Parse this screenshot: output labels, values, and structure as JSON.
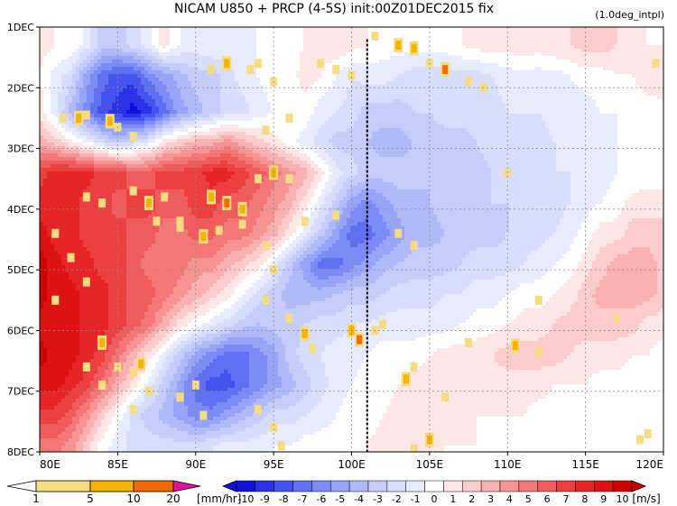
{
  "chart_data": {
    "type": "heatmap",
    "title": "NICAM   U850  +  PRCP  (4-5S)  init:00Z01DEC2015  fix",
    "note": "(1.0deg_intpl)",
    "x_ticks": [
      "80E",
      "85E",
      "90E",
      "95E",
      "100E",
      "105E",
      "110E",
      "115E",
      "120E"
    ],
    "x_values": [
      80,
      85,
      90,
      95,
      100,
      105,
      110,
      115,
      120
    ],
    "y_ticks": [
      "1DEC",
      "2DEC",
      "3DEC",
      "4DEC",
      "5DEC",
      "6DEC",
      "7DEC",
      "8DEC"
    ],
    "y_values": [
      1,
      2,
      3,
      4,
      5,
      6,
      7,
      8
    ],
    "xlim": [
      80,
      120
    ],
    "ylim": [
      1,
      8
    ],
    "y_inverted": true,
    "grid": true,
    "marker_line_lon": 101,
    "u850_field": [
      {
        "day": 1.3,
        "values": [
          1,
          0.5,
          0.5,
          -1,
          -3,
          -3,
          -2,
          -1,
          1,
          -0.5,
          -1,
          -0.5,
          -1,
          -1,
          -0.5,
          0,
          0,
          0.5,
          1,
          1.5,
          1,
          0.5,
          0,
          0,
          0,
          0,
          0,
          0.5,
          1,
          1,
          1,
          1.5,
          1,
          1.5,
          1.5,
          2,
          2,
          1.5,
          1,
          0.5,
          0.5
        ]
      },
      {
        "day": 1.8,
        "values": [
          0.5,
          -1,
          -2,
          -5,
          -7,
          -8,
          -8,
          -6,
          -5,
          -4,
          -3,
          -3,
          -2,
          -1,
          -0.5,
          0,
          0,
          1,
          0.5,
          -0.5,
          -1.5,
          -1,
          -1,
          -1.5,
          -2,
          -2,
          -2,
          -2,
          -2,
          -1.5,
          -1,
          -1,
          -1,
          -1,
          -0.5,
          0,
          0,
          0.5,
          0.5,
          1,
          1.5
        ]
      },
      {
        "day": 2.4,
        "values": [
          1,
          -1,
          -4,
          -6,
          -8,
          -9,
          -10,
          -9,
          -7,
          -5,
          -4,
          -3,
          -2,
          -2,
          -1,
          -0.5,
          0,
          0,
          -1,
          -1.5,
          -2,
          -3,
          -3,
          -3,
          -2.5,
          -2.5,
          -2,
          -2,
          -2,
          -2,
          -1.5,
          -1.5,
          -1.5,
          -1,
          -1,
          -1,
          -0.5,
          -0.5,
          0,
          0,
          0
        ]
      },
      {
        "day": 2.9,
        "values": [
          3,
          2,
          1,
          -0.5,
          -2,
          -3,
          -2,
          -1,
          1,
          2,
          3,
          3,
          4,
          3,
          2,
          1,
          0,
          -1,
          -2,
          -3,
          -3,
          -3.5,
          -4,
          -4,
          -3.5,
          -3,
          -3,
          -3,
          -2.5,
          -2,
          -2,
          -2,
          -2,
          -1.5,
          -1.5,
          -1,
          -1,
          -0.5,
          -0.5,
          0,
          0
        ]
      },
      {
        "day": 3.4,
        "values": [
          7,
          8,
          8,
          8,
          7,
          7,
          6,
          6,
          7,
          7,
          7,
          8,
          8,
          7,
          6,
          5,
          4,
          3,
          1,
          -1,
          -2,
          -3,
          -3,
          -3,
          -3,
          -3.5,
          -3,
          -3,
          -3,
          -2.5,
          -2,
          -2,
          -2,
          -1.5,
          -1.5,
          -1,
          -1,
          -0.5,
          -0.5,
          0,
          0
        ]
      },
      {
        "day": 3.9,
        "values": [
          8,
          8,
          8,
          7,
          7,
          6,
          7,
          7,
          6,
          6,
          7,
          7,
          6,
          6,
          5,
          4,
          3,
          1,
          -1,
          -3,
          -5,
          -6,
          -5,
          -4,
          -4,
          -3.5,
          -3,
          -3,
          -3,
          -2.5,
          -2.5,
          -2,
          -2,
          -2,
          -1.5,
          -1,
          -0.5,
          0,
          1,
          1,
          1
        ]
      },
      {
        "day": 4.4,
        "values": [
          9,
          8,
          8,
          7,
          7,
          7,
          6,
          6,
          5,
          5,
          6,
          6,
          5,
          5,
          4,
          3,
          1,
          -1,
          -3,
          -5,
          -7,
          -7,
          -6,
          -5,
          -4,
          -4,
          -3.5,
          -3,
          -3,
          -3,
          -2.5,
          -2,
          -2,
          -1.5,
          -1,
          0,
          1,
          1,
          2,
          2,
          2
        ]
      },
      {
        "day": 4.9,
        "values": [
          10,
          9,
          8,
          8,
          7,
          7,
          6,
          5,
          5,
          5,
          4,
          4,
          3,
          2,
          1,
          -1,
          -3,
          -5,
          -7,
          -7,
          -6,
          -5,
          -4,
          -3.5,
          -3,
          -3,
          -3,
          -2.5,
          -2,
          -2,
          -2,
          -1.5,
          -1,
          -0.5,
          0,
          1,
          2,
          3,
          3,
          3,
          2
        ]
      },
      {
        "day": 5.4,
        "values": [
          10,
          9,
          9,
          8,
          8,
          7,
          6,
          6,
          5,
          4,
          3,
          2,
          1,
          -0.5,
          -2,
          -3,
          -4,
          -4,
          -4,
          -3.5,
          -3,
          -3,
          -2.5,
          -2,
          -2,
          -2,
          -1.5,
          -1.5,
          -1,
          -1,
          -0.5,
          0,
          0,
          0.5,
          1,
          2,
          3,
          3,
          3,
          3,
          2
        ]
      },
      {
        "day": 5.9,
        "values": [
          9,
          9,
          9,
          8,
          8,
          7,
          6,
          5,
          3,
          1,
          0,
          -1,
          -2,
          -3,
          -3.5,
          -3,
          -3,
          -2.5,
          -2,
          -2,
          -1.5,
          -1.5,
          -1,
          -1,
          -1,
          -1,
          -1,
          -0.5,
          0,
          0,
          0.5,
          1,
          1,
          1.5,
          2,
          2,
          2,
          2,
          2,
          1,
          1
        ]
      },
      {
        "day": 6.4,
        "values": [
          10,
          9,
          9,
          8,
          7,
          5,
          3,
          1,
          -1,
          -3,
          -5,
          -6,
          -7,
          -7,
          -6,
          -5,
          -3,
          -2,
          -1.5,
          -1,
          -1,
          -0.5,
          0,
          0,
          0,
          0.5,
          1,
          1,
          1,
          1.5,
          2,
          2,
          2,
          2,
          1.5,
          1,
          1,
          1,
          0.5,
          0.5,
          0
        ]
      },
      {
        "day": 6.9,
        "values": [
          9,
          9,
          8,
          7,
          5,
          3,
          1,
          -1,
          -3,
          -5,
          -7,
          -8,
          -8,
          -7,
          -6,
          -5,
          -4,
          -3,
          -2,
          -1,
          -0.5,
          0,
          0,
          0.5,
          1,
          1,
          1,
          1.5,
          1.5,
          1,
          1,
          1,
          1,
          0.5,
          0.5,
          0.5,
          0,
          0,
          0,
          0,
          0
        ]
      },
      {
        "day": 7.4,
        "values": [
          7,
          7,
          6,
          4,
          2,
          0,
          -2,
          -3,
          -4,
          -5,
          -6,
          -6,
          -5,
          -4,
          -3,
          -2,
          -2,
          -1.5,
          -1,
          -0.5,
          0,
          0,
          0.5,
          1,
          1,
          1,
          1,
          1,
          0.5,
          0.5,
          0.5,
          0.5,
          0,
          0,
          0,
          0,
          0,
          0,
          0,
          0,
          0
        ]
      },
      {
        "day": 7.9,
        "values": [
          5,
          5,
          4,
          2,
          0,
          -1,
          -2,
          -2,
          -2,
          -2,
          -2,
          -1.5,
          -1,
          -1,
          -1,
          -0.5,
          -0.5,
          0,
          0,
          0,
          0,
          0.5,
          1,
          1,
          1,
          1,
          0.5,
          0.5,
          0.5,
          0,
          0,
          0,
          0,
          0,
          0,
          0,
          0,
          0,
          0,
          0,
          0
        ]
      }
    ],
    "u850_lons": [
      80,
      81,
      82,
      83,
      84,
      85,
      86,
      87,
      88,
      89,
      90,
      91,
      92,
      93,
      94,
      95,
      96,
      97,
      98,
      99,
      100,
      101,
      102,
      103,
      104,
      105,
      106,
      107,
      108,
      109,
      110,
      111,
      112,
      113,
      114,
      115,
      116,
      117,
      118,
      119,
      120
    ],
    "precip_cells": [
      {
        "lon": 81.5,
        "day": 2.5,
        "v": 3
      },
      {
        "lon": 82.5,
        "day": 2.5,
        "v": 5
      },
      {
        "lon": 83,
        "day": 2.45,
        "v": 2
      },
      {
        "lon": 84.5,
        "day": 2.55,
        "v": 6
      },
      {
        "lon": 85,
        "day": 2.65,
        "v": 3
      },
      {
        "lon": 86,
        "day": 2.8,
        "v": 2
      },
      {
        "lon": 91,
        "day": 1.7,
        "v": 3
      },
      {
        "lon": 92,
        "day": 1.6,
        "v": 6
      },
      {
        "lon": 93.5,
        "day": 1.7,
        "v": 2
      },
      {
        "lon": 94,
        "day": 1.6,
        "v": 4
      },
      {
        "lon": 95,
        "day": 1.9,
        "v": 2
      },
      {
        "lon": 98,
        "day": 1.6,
        "v": 3
      },
      {
        "lon": 99,
        "day": 1.7,
        "v": 2
      },
      {
        "lon": 100,
        "day": 1.8,
        "v": 4
      },
      {
        "lon": 101.5,
        "day": 1.15,
        "v": 3
      },
      {
        "lon": 103,
        "day": 1.3,
        "v": 8
      },
      {
        "lon": 104,
        "day": 1.35,
        "v": 6
      },
      {
        "lon": 105,
        "day": 1.6,
        "v": 4
      },
      {
        "lon": 106,
        "day": 1.7,
        "v": 12
      },
      {
        "lon": 107.5,
        "day": 1.9,
        "v": 3
      },
      {
        "lon": 108.5,
        "day": 2.0,
        "v": 2
      },
      {
        "lon": 94.5,
        "day": 2.7,
        "v": 3
      },
      {
        "lon": 96,
        "day": 2.5,
        "v": 2
      },
      {
        "lon": 83,
        "day": 3.8,
        "v": 2
      },
      {
        "lon": 84,
        "day": 3.9,
        "v": 3
      },
      {
        "lon": 86,
        "day": 3.7,
        "v": 2
      },
      {
        "lon": 87,
        "day": 3.9,
        "v": 5
      },
      {
        "lon": 88,
        "day": 3.8,
        "v": 3
      },
      {
        "lon": 89,
        "day": 4.2,
        "v": 2
      },
      {
        "lon": 91,
        "day": 3.8,
        "v": 8
      },
      {
        "lon": 92,
        "day": 3.9,
        "v": 12
      },
      {
        "lon": 93,
        "day": 4.0,
        "v": 6
      },
      {
        "lon": 94,
        "day": 3.5,
        "v": 4
      },
      {
        "lon": 95,
        "day": 3.4,
        "v": 5
      },
      {
        "lon": 96,
        "day": 3.5,
        "v": 3
      },
      {
        "lon": 87.5,
        "day": 4.2,
        "v": 3
      },
      {
        "lon": 89,
        "day": 4.3,
        "v": 2
      },
      {
        "lon": 90.5,
        "day": 4.45,
        "v": 8
      },
      {
        "lon": 91.5,
        "day": 4.35,
        "v": 4
      },
      {
        "lon": 93,
        "day": 4.25,
        "v": 3
      },
      {
        "lon": 94.5,
        "day": 4.6,
        "v": 2
      },
      {
        "lon": 95,
        "day": 5.0,
        "v": 2
      },
      {
        "lon": 97,
        "day": 4.2,
        "v": 2
      },
      {
        "lon": 99,
        "day": 4.1,
        "v": 2
      },
      {
        "lon": 103,
        "day": 4.4,
        "v": 2
      },
      {
        "lon": 104,
        "day": 4.6,
        "v": 2
      },
      {
        "lon": 81,
        "day": 4.4,
        "v": 2
      },
      {
        "lon": 82,
        "day": 4.8,
        "v": 3
      },
      {
        "lon": 83,
        "day": 5.2,
        "v": 2
      },
      {
        "lon": 81,
        "day": 5.5,
        "v": 2
      },
      {
        "lon": 94.5,
        "day": 5.5,
        "v": 2
      },
      {
        "lon": 96,
        "day": 5.8,
        "v": 3
      },
      {
        "lon": 97,
        "day": 6.05,
        "v": 7
      },
      {
        "lon": 97.5,
        "day": 6.3,
        "v": 4
      },
      {
        "lon": 100,
        "day": 6.0,
        "v": 5
      },
      {
        "lon": 100.5,
        "day": 6.15,
        "v": 12
      },
      {
        "lon": 101.5,
        "day": 6.0,
        "v": 4
      },
      {
        "lon": 102,
        "day": 5.9,
        "v": 3
      },
      {
        "lon": 84,
        "day": 6.2,
        "v": 6
      },
      {
        "lon": 83,
        "day": 6.6,
        "v": 3
      },
      {
        "lon": 84,
        "day": 6.9,
        "v": 2
      },
      {
        "lon": 85,
        "day": 6.6,
        "v": 2
      },
      {
        "lon": 86,
        "day": 6.7,
        "v": 4
      },
      {
        "lon": 86.5,
        "day": 6.55,
        "v": 6
      },
      {
        "lon": 87,
        "day": 7.0,
        "v": 2
      },
      {
        "lon": 86,
        "day": 7.3,
        "v": 3
      },
      {
        "lon": 89,
        "day": 7.1,
        "v": 2
      },
      {
        "lon": 90,
        "day": 6.9,
        "v": 3
      },
      {
        "lon": 90.5,
        "day": 7.4,
        "v": 2
      },
      {
        "lon": 94,
        "day": 7.3,
        "v": 3
      },
      {
        "lon": 95,
        "day": 7.6,
        "v": 2
      },
      {
        "lon": 95.5,
        "day": 7.9,
        "v": 2
      },
      {
        "lon": 103.5,
        "day": 6.8,
        "v": 5
      },
      {
        "lon": 104,
        "day": 6.6,
        "v": 3
      },
      {
        "lon": 105,
        "day": 7.8,
        "v": 6
      },
      {
        "lon": 104,
        "day": 7.95,
        "v": 3
      },
      {
        "lon": 106,
        "day": 7.1,
        "v": 2
      },
      {
        "lon": 107.5,
        "day": 6.2,
        "v": 2
      },
      {
        "lon": 110.5,
        "day": 6.25,
        "v": 5
      },
      {
        "lon": 112,
        "day": 6.35,
        "v": 3
      },
      {
        "lon": 112,
        "day": 5.5,
        "v": 3
      },
      {
        "lon": 117,
        "day": 5.8,
        "v": 2
      },
      {
        "lon": 118.5,
        "day": 7.8,
        "v": 3
      },
      {
        "lon": 119,
        "day": 7.7,
        "v": 2
      },
      {
        "lon": 110,
        "day": 3.4,
        "v": 2
      },
      {
        "lon": 119.5,
        "day": 1.6,
        "v": 2
      }
    ],
    "precip_legend": {
      "labels": [
        "1",
        "5",
        "10",
        "20"
      ],
      "unit": "[mm/hr]",
      "colors": [
        "#ffffff",
        "#f5dc82",
        "#f2b400",
        "#f06a00",
        "#e010a0"
      ]
    },
    "u_legend": {
      "labels": [
        "-10",
        "-9",
        "-8",
        "-7",
        "-6",
        "-5",
        "-4",
        "-3",
        "-2",
        "-1",
        "0",
        "1",
        "2",
        "3",
        "4",
        "5",
        "6",
        "7",
        "8",
        "9",
        "10"
      ],
      "unit": "[m/s]",
      "colors": [
        "#1010d8",
        "#2b32e6",
        "#4554ef",
        "#6070f3",
        "#7c8bf5",
        "#97a4f7",
        "#b0baf9",
        "#c6cdfb",
        "#d8ddfc",
        "#e8ebfd",
        "#ffffff",
        "#fde6e6",
        "#fccccc",
        "#f9b0b0",
        "#f69494",
        "#f37777",
        "#f05b5b",
        "#ec3f3f",
        "#e62626",
        "#de1212",
        "#d00000"
      ]
    }
  }
}
